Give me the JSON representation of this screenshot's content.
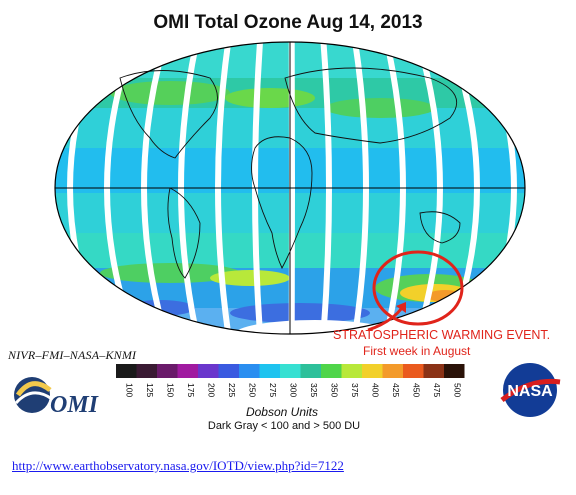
{
  "title": "OMI Total Ozone Aug 14, 2013",
  "annotation": {
    "main": "STRATOSPHERIC WARMING EVENT.",
    "sub": "First week in August"
  },
  "credit": "NIVR–FMI–NASA–KNMI",
  "logo_text": "OMI",
  "colorbar": {
    "ticks": [
      "100",
      "125",
      "150",
      "175",
      "200",
      "225",
      "250",
      "275",
      "300",
      "325",
      "350",
      "375",
      "400",
      "425",
      "450",
      "475",
      "500"
    ],
    "colors": [
      "#1a1a1a",
      "#3a1a33",
      "#6a1a6a",
      "#a01aa0",
      "#6a36cc",
      "#3a5ae0",
      "#2a8ef0",
      "#1ec3ef",
      "#37e0d2",
      "#2dc09a",
      "#4fd54a",
      "#b8e83a",
      "#f2d02a",
      "#f39a2a",
      "#ea5a1e",
      "#8a3216",
      "#2a1208"
    ],
    "units_label": "Dobson Units",
    "note": "Dark Gray < 100 and > 500 DU"
  },
  "link": "http://www.earthobservatory.nasa.gov/IOTD/view.php?id=7122",
  "icons": [
    "omi-logo-icon",
    "nasa-logo-icon",
    "red-circle-icon",
    "red-arrow-icon"
  ]
}
